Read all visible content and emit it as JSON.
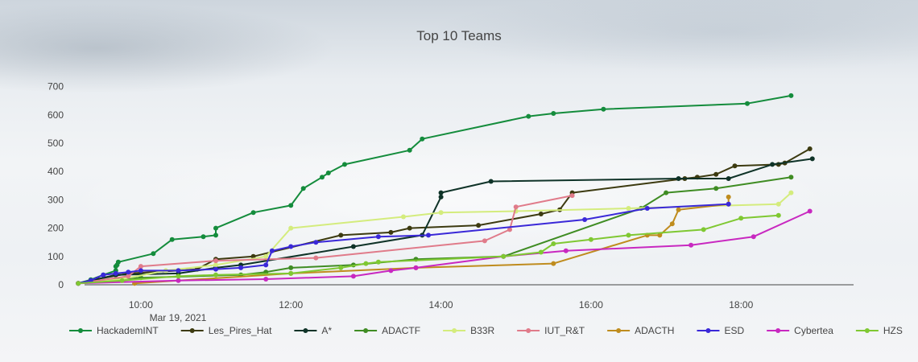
{
  "chart_data": {
    "type": "line",
    "title": "Top 10 Teams",
    "date_label": "Mar 19, 2021",
    "x_axis": {
      "type": "time",
      "range": [
        "09:15",
        "19:30"
      ],
      "ticks": [
        "10:00",
        "12:00",
        "14:00",
        "16:00",
        "18:00"
      ]
    },
    "y_axis": {
      "range": [
        0,
        750
      ],
      "ticks": [
        0,
        100,
        200,
        300,
        400,
        500,
        600,
        700
      ]
    },
    "grid": false,
    "legend_position": "bottom",
    "series": [
      {
        "name": "HackademINT",
        "color": "#148c3c",
        "points": [
          [
            "09:10",
            5
          ],
          [
            "09:20",
            18
          ],
          [
            "09:30",
            35
          ],
          [
            "09:40",
            50
          ],
          [
            "09:40",
            65
          ],
          [
            "09:41",
            70
          ],
          [
            "09:42",
            80
          ],
          [
            "10:10",
            110
          ],
          [
            "10:25",
            160
          ],
          [
            "10:50",
            170
          ],
          [
            "11:00",
            175
          ],
          [
            "11:00",
            200
          ],
          [
            "11:30",
            255
          ],
          [
            "12:00",
            280
          ],
          [
            "12:10",
            340
          ],
          [
            "12:25",
            380
          ],
          [
            "12:30",
            395
          ],
          [
            "12:43",
            425
          ],
          [
            "13:35",
            475
          ],
          [
            "13:45",
            515
          ],
          [
            "15:10",
            595
          ],
          [
            "15:30",
            605
          ],
          [
            "16:10",
            620
          ],
          [
            "18:05",
            640
          ],
          [
            "18:40",
            668
          ]
        ]
      },
      {
        "name": "Les_Pires_Hat",
        "color": "#3c3a10",
        "points": [
          [
            "09:10",
            5
          ],
          [
            "09:25",
            20
          ],
          [
            "09:50",
            40
          ],
          [
            "10:30",
            50
          ],
          [
            "10:45",
            55
          ],
          [
            "11:00",
            90
          ],
          [
            "11:30",
            100
          ],
          [
            "12:40",
            175
          ],
          [
            "13:20",
            185
          ],
          [
            "13:35",
            200
          ],
          [
            "14:30",
            210
          ],
          [
            "15:20",
            250
          ],
          [
            "15:35",
            265
          ],
          [
            "15:45",
            325
          ],
          [
            "17:15",
            375
          ],
          [
            "17:25",
            380
          ],
          [
            "17:40",
            390
          ],
          [
            "17:55",
            420
          ],
          [
            "18:30",
            425
          ],
          [
            "18:35",
            430
          ],
          [
            "18:55",
            480
          ]
        ]
      },
      {
        "name": "A*",
        "color": "#0f3328",
        "points": [
          [
            "09:10",
            5
          ],
          [
            "09:20",
            15
          ],
          [
            "09:40",
            35
          ],
          [
            "10:30",
            40
          ],
          [
            "11:00",
            60
          ],
          [
            "11:20",
            70
          ],
          [
            "12:50",
            135
          ],
          [
            "13:45",
            175
          ],
          [
            "14:00",
            310
          ],
          [
            "14:00",
            325
          ],
          [
            "14:40",
            365
          ],
          [
            "17:10",
            375
          ],
          [
            "17:50",
            375
          ],
          [
            "18:25",
            425
          ],
          [
            "18:57",
            445
          ]
        ]
      },
      {
        "name": "ADACTF",
        "color": "#3f8c23",
        "points": [
          [
            "09:10",
            5
          ],
          [
            "09:40",
            20
          ],
          [
            "10:00",
            25
          ],
          [
            "11:20",
            35
          ],
          [
            "11:40",
            45
          ],
          [
            "12:00",
            60
          ],
          [
            "12:50",
            70
          ],
          [
            "13:40",
            90
          ],
          [
            "14:50",
            100
          ],
          [
            "16:40",
            270
          ],
          [
            "17:00",
            325
          ],
          [
            "17:40",
            340
          ],
          [
            "18:40",
            380
          ]
        ]
      },
      {
        "name": "B33R",
        "color": "#d4ec7d",
        "points": [
          [
            "09:10",
            5
          ],
          [
            "09:45",
            20
          ],
          [
            "10:20",
            50
          ],
          [
            "11:00",
            70
          ],
          [
            "11:40",
            100
          ],
          [
            "12:00",
            200
          ],
          [
            "13:30",
            240
          ],
          [
            "14:00",
            255
          ],
          [
            "15:00",
            260
          ],
          [
            "16:30",
            270
          ],
          [
            "18:30",
            285
          ],
          [
            "18:40",
            325
          ]
        ]
      },
      {
        "name": "IUT_R&T",
        "color": "#e07b8a",
        "points": [
          [
            "09:10",
            5
          ],
          [
            "09:50",
            30
          ],
          [
            "10:00",
            65
          ],
          [
            "11:00",
            85
          ],
          [
            "12:20",
            95
          ],
          [
            "14:35",
            155
          ],
          [
            "14:55",
            195
          ],
          [
            "15:00",
            275
          ],
          [
            "15:45",
            315
          ]
        ]
      },
      {
        "name": "ADACTH",
        "color": "#bf8c1e",
        "points": [
          [
            "09:55",
            5
          ],
          [
            "12:00",
            40
          ],
          [
            "13:40",
            60
          ],
          [
            "15:30",
            75
          ],
          [
            "16:45",
            175
          ],
          [
            "16:55",
            175
          ],
          [
            "17:05",
            215
          ],
          [
            "17:10",
            265
          ],
          [
            "17:50",
            285
          ],
          [
            "17:50",
            310
          ]
        ]
      },
      {
        "name": "ESD",
        "color": "#3a28d8",
        "points": [
          [
            "09:10",
            5
          ],
          [
            "09:20",
            15
          ],
          [
            "09:30",
            35
          ],
          [
            "09:40",
            40
          ],
          [
            "09:50",
            45
          ],
          [
            "10:00",
            50
          ],
          [
            "10:30",
            50
          ],
          [
            "11:00",
            55
          ],
          [
            "11:20",
            60
          ],
          [
            "11:40",
            70
          ],
          [
            "11:45",
            120
          ],
          [
            "12:00",
            135
          ],
          [
            "12:20",
            150
          ],
          [
            "13:10",
            170
          ],
          [
            "13:50",
            175
          ],
          [
            "15:55",
            230
          ],
          [
            "16:45",
            270
          ],
          [
            "17:50",
            285
          ]
        ]
      },
      {
        "name": "Cybertea",
        "color": "#c828c0",
        "points": [
          [
            "09:10",
            5
          ],
          [
            "10:30",
            15
          ],
          [
            "11:40",
            20
          ],
          [
            "12:50",
            30
          ],
          [
            "13:20",
            50
          ],
          [
            "13:40",
            60
          ],
          [
            "14:50",
            100
          ],
          [
            "15:40",
            120
          ],
          [
            "17:20",
            140
          ],
          [
            "18:10",
            170
          ],
          [
            "18:55",
            260
          ]
        ]
      },
      {
        "name": "HZS",
        "color": "#7fc832",
        "points": [
          [
            "09:10",
            5
          ],
          [
            "09:45",
            15
          ],
          [
            "10:30",
            30
          ],
          [
            "11:00",
            35
          ],
          [
            "12:00",
            40
          ],
          [
            "12:40",
            60
          ],
          [
            "13:00",
            75
          ],
          [
            "13:10",
            80
          ],
          [
            "14:50",
            100
          ],
          [
            "15:20",
            115
          ],
          [
            "15:30",
            145
          ],
          [
            "16:00",
            160
          ],
          [
            "16:30",
            175
          ],
          [
            "17:30",
            195
          ],
          [
            "18:00",
            235
          ],
          [
            "18:30",
            245
          ]
        ]
      }
    ]
  }
}
